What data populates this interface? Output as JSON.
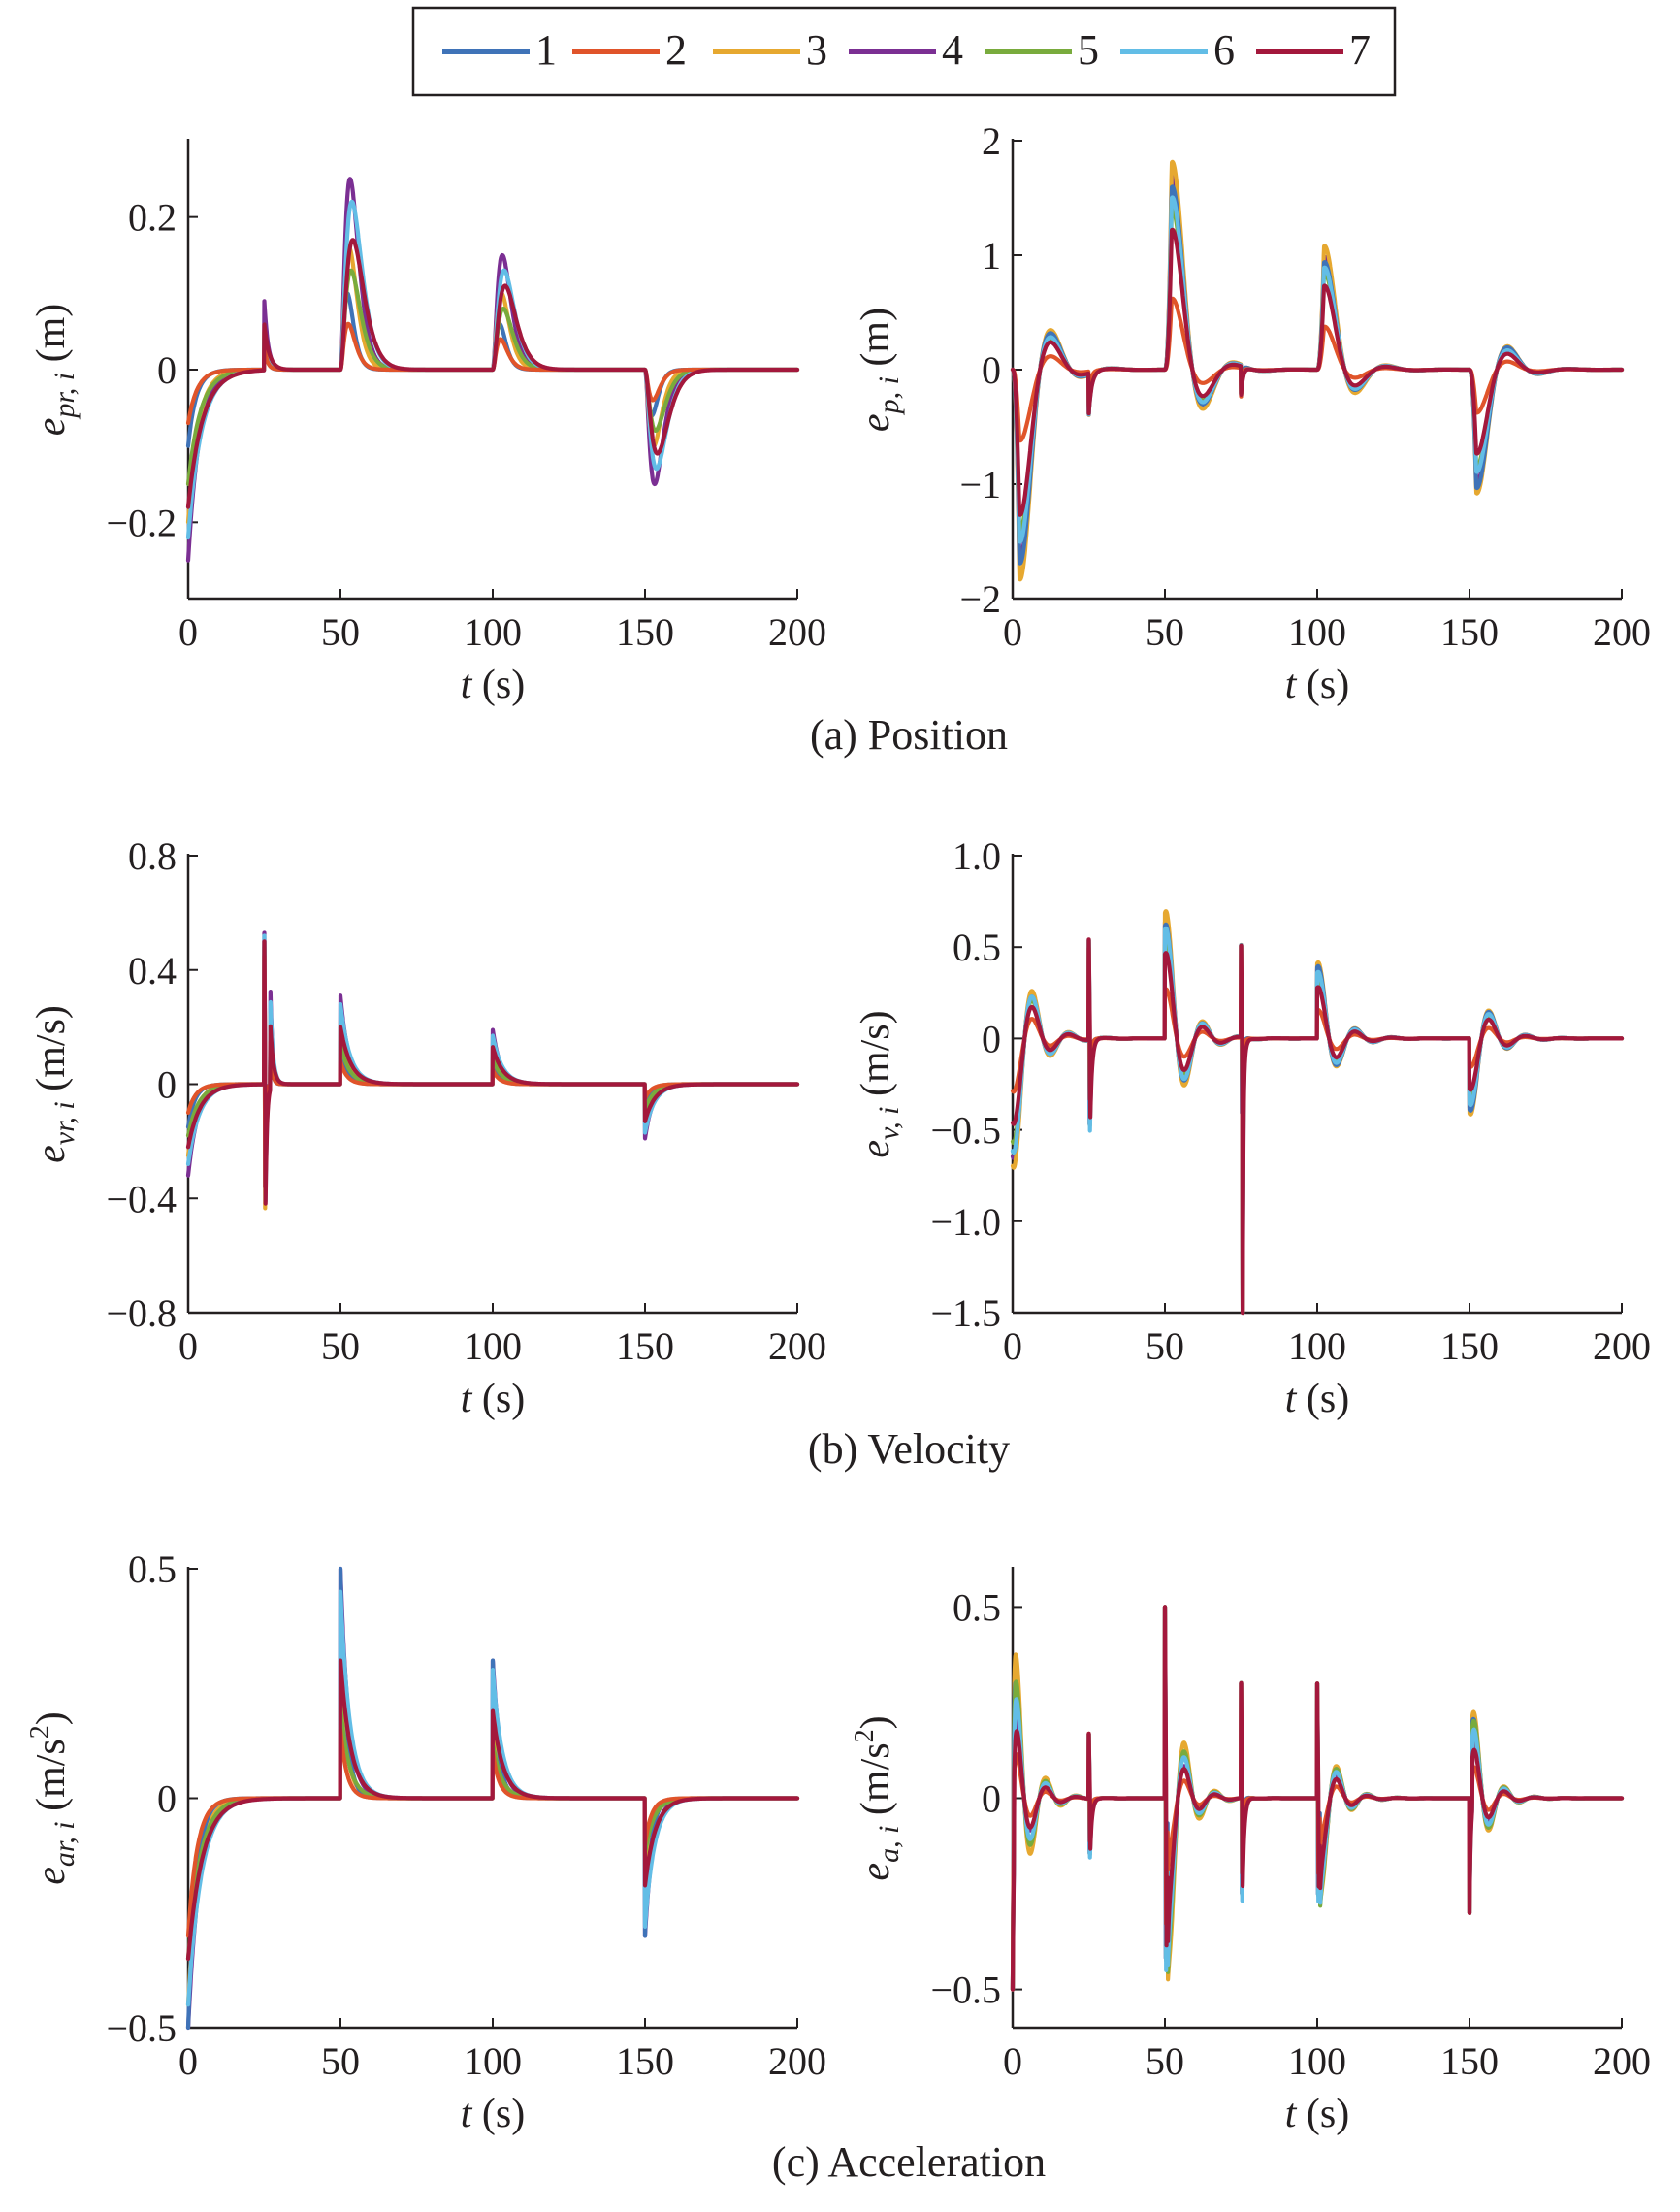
{
  "legend": {
    "entries": [
      {
        "label": "1",
        "color": "#3f73b8"
      },
      {
        "label": "2",
        "color": "#e0542a"
      },
      {
        "label": "3",
        "color": "#e6a830"
      },
      {
        "label": "4",
        "color": "#7b2f93"
      },
      {
        "label": "5",
        "color": "#79ab3d"
      },
      {
        "label": "6",
        "color": "#62bde6"
      },
      {
        "label": "7",
        "color": "#a3183c"
      }
    ]
  },
  "captions": [
    "(a) Position",
    "(b) Velocity",
    "(c) Acceleration"
  ],
  "chart_data": [
    {
      "id": "pr",
      "type": "line",
      "ylabel_base": "e",
      "ylabel_sub": "pr, i",
      "ylabel_unit": " (m)",
      "ylabel_sup": "",
      "xlabel_var": "t",
      "xlabel_unit": " (s)",
      "xlim": [
        0,
        200
      ],
      "ylim": [
        -0.3,
        0.3
      ],
      "xticks": [
        0,
        50,
        100,
        150,
        200
      ],
      "xtick_labels": [
        "0",
        "50",
        "100",
        "150",
        "200"
      ],
      "yticks": [
        -0.2,
        0,
        0.2
      ],
      "ytick_labels": [
        "−0.2",
        "0",
        "0.2"
      ],
      "events": [
        {
          "t": 0,
          "type": "damp",
          "amps": [
            -0.1,
            -0.07,
            -0.2,
            -0.25,
            -0.15,
            -0.22,
            -0.18
          ],
          "tau": 3.5
        },
        {
          "t": 25,
          "type": "kick",
          "amps": [
            0.04,
            0.03,
            0.05,
            0.09,
            0.05,
            0.04,
            0.06
          ],
          "tau": 1.2
        },
        {
          "t": 50,
          "type": "bump",
          "amps": [
            0.1,
            0.06,
            0.16,
            0.25,
            0.13,
            0.22,
            0.17
          ],
          "tau": 3
        },
        {
          "t": 100,
          "type": "bump",
          "amps": [
            0.06,
            0.04,
            0.1,
            0.15,
            0.08,
            0.13,
            0.11
          ],
          "tau": 3
        },
        {
          "t": 150,
          "type": "bump",
          "amps": [
            -0.06,
            -0.04,
            -0.1,
            -0.15,
            -0.08,
            -0.13,
            -0.11
          ],
          "tau": 3
        }
      ],
      "grid": false
    },
    {
      "id": "p",
      "type": "line",
      "ylabel_base": "e",
      "ylabel_sub": "p, i",
      "ylabel_unit": " (m)",
      "ylabel_sup": "",
      "xlabel_var": "t",
      "xlabel_unit": " (s)",
      "xlim": [
        0,
        200
      ],
      "ylim": [
        -2,
        2
      ],
      "xticks": [
        0,
        50,
        100,
        150,
        200
      ],
      "xtick_labels": [
        "0",
        "50",
        "100",
        "150",
        "200"
      ],
      "yticks": [
        -2,
        -1,
        0,
        1,
        2
      ],
      "ytick_labels": [
        "−2",
        "−1",
        "0",
        "1",
        "2"
      ],
      "events": [
        {
          "t": 0,
          "type": "osc",
          "amps": [
            -1.8,
            -0.66,
            -1.95,
            -1.75,
            -1.5,
            -1.6,
            -1.35
          ],
          "tau": 6,
          "period": 20
        },
        {
          "t": 25,
          "type": "kick",
          "amps": [
            -0.35,
            -0.3,
            -0.35,
            -0.35,
            -0.3,
            -0.35,
            -0.35
          ],
          "tau": 0.7
        },
        {
          "t": 50,
          "type": "osc",
          "amps": [
            1.7,
            0.66,
            1.93,
            1.8,
            1.5,
            1.6,
            1.3
          ],
          "tau": 6,
          "period": 20
        },
        {
          "t": 75,
          "type": "kick",
          "amps": [
            -0.25,
            -0.25,
            -0.25,
            -0.25,
            -0.25,
            -0.25,
            -0.25
          ],
          "tau": 0.5
        },
        {
          "t": 100,
          "type": "osc",
          "amps": [
            1.0,
            0.4,
            1.15,
            1.05,
            0.9,
            0.95,
            0.78
          ],
          "tau": 6,
          "period": 20
        },
        {
          "t": 150,
          "type": "osc",
          "amps": [
            -1.1,
            -0.4,
            -1.15,
            -1.05,
            -0.9,
            -0.95,
            -0.78
          ],
          "tau": 6,
          "period": 20
        }
      ],
      "grid": false
    },
    {
      "id": "vr",
      "type": "line",
      "ylabel_base": "e",
      "ylabel_sub": "vr, i",
      "ylabel_unit": " (m/s)",
      "ylabel_sup": "",
      "xlabel_var": "t",
      "xlabel_unit": " (s)",
      "xlim": [
        0,
        200
      ],
      "ylim": [
        -0.8,
        0.8
      ],
      "xticks": [
        0,
        50,
        100,
        150,
        200
      ],
      "xtick_labels": [
        "0",
        "50",
        "100",
        "150",
        "200"
      ],
      "yticks": [
        -0.8,
        -0.4,
        0,
        0.4,
        0.8
      ],
      "ytick_labels": [
        "−0.8",
        "−0.4",
        "0",
        "0.4",
        "0.8"
      ],
      "events": [
        {
          "t": 0,
          "type": "damp",
          "amps": [
            -0.15,
            -0.1,
            -0.25,
            -0.32,
            -0.18,
            -0.28,
            -0.22
          ],
          "tau": 3
        },
        {
          "t": 25,
          "type": "doublet",
          "amps": [
            0.5,
            0.45,
            0.5,
            0.53,
            0.48,
            0.52,
            0.5
          ],
          "tau": 0.25
        },
        {
          "t": 27,
          "type": "damp",
          "amps": [
            0.2,
            0.15,
            0.25,
            0.33,
            0.2,
            0.3,
            0.22
          ],
          "tau": 0.7
        },
        {
          "t": 50,
          "type": "damp",
          "amps": [
            0.15,
            0.08,
            0.22,
            0.31,
            0.14,
            0.28,
            0.2
          ],
          "tau": 2.5
        },
        {
          "t": 100,
          "type": "damp",
          "amps": [
            0.09,
            0.05,
            0.13,
            0.19,
            0.09,
            0.17,
            0.13
          ],
          "tau": 2.5
        },
        {
          "t": 150,
          "type": "damp",
          "amps": [
            -0.09,
            -0.05,
            -0.13,
            -0.19,
            -0.09,
            -0.17,
            -0.13
          ],
          "tau": 2.5
        }
      ],
      "grid": false
    },
    {
      "id": "v",
      "type": "line",
      "ylabel_base": "e",
      "ylabel_sub": "v, i",
      "ylabel_unit": " (m/s)",
      "ylabel_sup": "",
      "xlabel_var": "t",
      "xlabel_unit": " (s)",
      "xlim": [
        0,
        200
      ],
      "ylim": [
        -1.5,
        1.0
      ],
      "xticks": [
        0,
        50,
        100,
        150,
        200
      ],
      "xtick_labels": [
        "0",
        "50",
        "100",
        "150",
        "200"
      ],
      "yticks": [
        -1.5,
        -1.0,
        -0.5,
        0,
        0.5,
        1.0
      ],
      "ytick_labels": [
        "−1.5",
        "−1.0",
        "−0.5",
        "0",
        "0.5",
        "1.0"
      ],
      "events": [
        {
          "t": 0,
          "type": "osc2",
          "amps": [
            -0.6,
            -0.28,
            -0.68,
            -0.63,
            -0.55,
            -0.6,
            -0.45
          ],
          "tau": 6,
          "period": 12
        },
        {
          "t": 25,
          "type": "doublet",
          "amps": [
            0.55,
            0.5,
            0.55,
            0.55,
            0.55,
            0.55,
            0.55
          ],
          "tau": 0.3
        },
        {
          "t": 50,
          "type": "osc2",
          "amps": [
            0.6,
            0.26,
            0.67,
            0.62,
            0.5,
            0.58,
            0.45
          ],
          "tau": 6,
          "period": 12
        },
        {
          "t": 75,
          "type": "doublet",
          "amps": [
            0.5,
            0.5,
            0.5,
            0.5,
            0.5,
            0.5,
            0.5
          ],
          "tau": 0.3
        },
        {
          "t": 75.5,
          "type": "kick",
          "amps": [
            -1.35,
            -1.35,
            -1.35,
            -1.35,
            -1.35,
            -1.35,
            -1.35
          ],
          "tau": 0.15
        },
        {
          "t": 100,
          "type": "osc2",
          "amps": [
            0.38,
            0.15,
            0.4,
            0.37,
            0.3,
            0.35,
            0.27
          ],
          "tau": 6,
          "period": 12
        },
        {
          "t": 150,
          "type": "osc2",
          "amps": [
            -0.38,
            -0.15,
            -0.4,
            -0.37,
            -0.3,
            -0.35,
            -0.27
          ],
          "tau": 6,
          "period": 12
        }
      ],
      "grid": false
    },
    {
      "id": "ar",
      "type": "line",
      "ylabel_base": "e",
      "ylabel_sub": "ar, i",
      "ylabel_unit": " (m/s",
      "ylabel_sup": "2",
      "xlabel_var": "t",
      "xlabel_unit": " (s)",
      "xlim": [
        0,
        200
      ],
      "ylim": [
        -0.5,
        0.5
      ],
      "xticks": [
        0,
        50,
        100,
        150,
        200
      ],
      "xtick_labels": [
        "0",
        "50",
        "100",
        "150",
        "200"
      ],
      "yticks": [
        -0.5,
        0,
        0.5
      ],
      "ytick_labels": [
        "−0.5",
        "0",
        "0.5"
      ],
      "events": [
        {
          "t": 0,
          "type": "damp",
          "amps": [
            -0.5,
            -0.3,
            -0.45,
            -0.5,
            -0.35,
            -0.45,
            -0.35
          ],
          "tau": 3.5
        },
        {
          "t": 50,
          "type": "damp",
          "amps": [
            0.5,
            0.15,
            0.25,
            0.5,
            0.2,
            0.45,
            0.3
          ],
          "tau": 2.5
        },
        {
          "t": 100,
          "type": "damp",
          "amps": [
            0.3,
            0.1,
            0.15,
            0.3,
            0.12,
            0.28,
            0.19
          ],
          "tau": 2.5
        },
        {
          "t": 150,
          "type": "damp",
          "amps": [
            -0.3,
            -0.1,
            -0.15,
            -0.3,
            -0.12,
            -0.28,
            -0.19
          ],
          "tau": 2.5
        }
      ],
      "grid": false
    },
    {
      "id": "a",
      "type": "line",
      "ylabel_base": "e",
      "ylabel_sub": "a, i",
      "ylabel_unit": " (m/s",
      "ylabel_sup": "2",
      "xlabel_var": "t",
      "xlabel_unit": " (s)",
      "xlim": [
        0,
        200
      ],
      "ylim": [
        -0.6,
        0.6
      ],
      "xticks": [
        0,
        50,
        100,
        150,
        200
      ],
      "xtick_labels": [
        "0",
        "50",
        "100",
        "150",
        "200"
      ],
      "yticks": [
        -0.5,
        0,
        0.5
      ],
      "ytick_labels": [
        "−0.5",
        "0",
        "0.5"
      ],
      "events": [
        {
          "t": 0,
          "type": "kick",
          "amps": [
            -0.5,
            -0.5,
            -0.5,
            -0.5,
            -0.5,
            -0.5,
            -0.5
          ],
          "tau": 0.3
        },
        {
          "t": 0.5,
          "type": "osc2",
          "amps": [
            0.3,
            0.12,
            0.38,
            0.22,
            0.32,
            0.28,
            0.2
          ],
          "tau": 5,
          "period": 10
        },
        {
          "t": 25,
          "type": "doublet",
          "amps": [
            0.17,
            0.17,
            0.17,
            0.17,
            0.17,
            0.17,
            0.17
          ],
          "tau": 0.3
        },
        {
          "t": 50,
          "type": "doublet",
          "amps": [
            0.5,
            0.5,
            0.5,
            0.5,
            0.5,
            0.5,
            0.5
          ],
          "tau": 0.3
        },
        {
          "t": 51,
          "type": "osc2",
          "amps": [
            -0.3,
            -0.12,
            -0.38,
            -0.22,
            -0.32,
            -0.28,
            -0.2
          ],
          "tau": 5,
          "period": 10
        },
        {
          "t": 75,
          "type": "doublet",
          "amps": [
            0.3,
            0.3,
            0.3,
            0.3,
            0.3,
            0.3,
            0.3
          ],
          "tau": 0.3
        },
        {
          "t": 100,
          "type": "doublet",
          "amps": [
            0.3,
            0.3,
            0.3,
            0.3,
            0.3,
            0.3,
            0.3
          ],
          "tau": 0.3
        },
        {
          "t": 101,
          "type": "osc2",
          "amps": [
            -0.2,
            -0.08,
            -0.22,
            -0.15,
            -0.2,
            -0.18,
            -0.13
          ],
          "tau": 5,
          "period": 10
        },
        {
          "t": 150,
          "type": "kick",
          "amps": [
            -0.3,
            -0.3,
            -0.3,
            -0.3,
            -0.3,
            -0.3,
            -0.3
          ],
          "tau": 0.3
        },
        {
          "t": 151,
          "type": "osc2",
          "amps": [
            0.2,
            0.08,
            0.22,
            0.15,
            0.2,
            0.18,
            0.13
          ],
          "tau": 5,
          "period": 10
        }
      ],
      "grid": false
    }
  ]
}
